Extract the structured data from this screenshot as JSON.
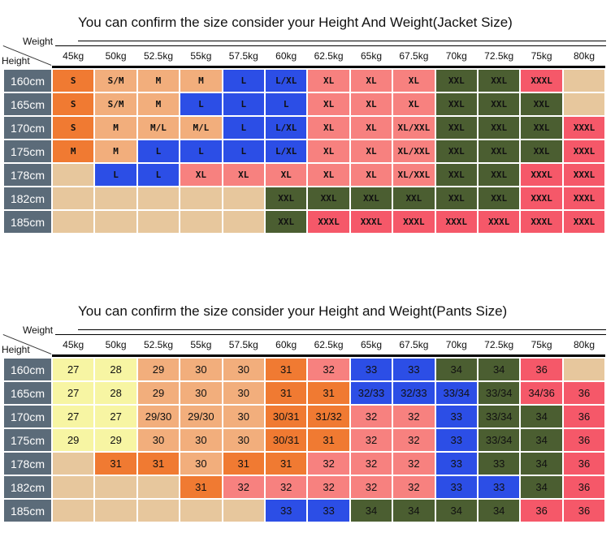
{
  "jacket": {
    "title": "You can confirm the size consider  your Height And Weight(Jacket Size)",
    "weight_label": "Weight",
    "height_label": "Height",
    "weights": [
      "45kg",
      "50kg",
      "52.5kg",
      "55kg",
      "57.5kg",
      "60kg",
      "62.5kg",
      "65kg",
      "67.5kg",
      "70kg",
      "72.5kg",
      "75kg",
      "80kg"
    ],
    "rows": [
      {
        "height": "160cm",
        "cells": [
          "S",
          "S/M",
          "M",
          "M",
          "L",
          "L/XL",
          "XL",
          "XL",
          "XL",
          "XXL",
          "XXL",
          "XXXL",
          null
        ],
        "colors": [
          "#f07a32",
          "#f2ae7c",
          "#f2ae7c",
          "#f2ae7c",
          "#2c4ee6",
          "#2c4ee6",
          "#f7817f",
          "#f7817f",
          "#f7817f",
          "#4b5e31",
          "#4b5e31",
          "#f55869",
          "#e7c79d"
        ]
      },
      {
        "height": "165cm",
        "cells": [
          "S",
          "S/M",
          "M",
          "L",
          "L",
          "L",
          "XL",
          "XL",
          "XL",
          "XXL",
          "XXL",
          "XXL",
          null
        ],
        "colors": [
          "#f07a32",
          "#f2ae7c",
          "#f2ae7c",
          "#2c4ee6",
          "#2c4ee6",
          "#2c4ee6",
          "#f7817f",
          "#f7817f",
          "#f7817f",
          "#4b5e31",
          "#4b5e31",
          "#4b5e31",
          "#e7c79d"
        ]
      },
      {
        "height": "170cm",
        "cells": [
          "S",
          "M",
          "M/L",
          "M/L",
          "L",
          "L/XL",
          "XL",
          "XL",
          "XL/XXL",
          "XXL",
          "XXL",
          "XXL",
          "XXXL"
        ],
        "colors": [
          "#f07a32",
          "#f2ae7c",
          "#f2ae7c",
          "#f2ae7c",
          "#2c4ee6",
          "#2c4ee6",
          "#f7817f",
          "#f7817f",
          "#f7817f",
          "#4b5e31",
          "#4b5e31",
          "#4b5e31",
          "#f55869"
        ]
      },
      {
        "height": "175cm",
        "cells": [
          "M",
          "M",
          "L",
          "L",
          "L",
          "L/XL",
          "XL",
          "XL",
          "XL/XXL",
          "XXL",
          "XXL",
          "XXL",
          "XXXL"
        ],
        "colors": [
          "#f07a32",
          "#f2ae7c",
          "#2c4ee6",
          "#2c4ee6",
          "#2c4ee6",
          "#2c4ee6",
          "#f7817f",
          "#f7817f",
          "#f7817f",
          "#4b5e31",
          "#4b5e31",
          "#4b5e31",
          "#f55869"
        ]
      },
      {
        "height": "178cm",
        "cells": [
          null,
          "L",
          "L",
          "XL",
          "XL",
          "XL",
          "XL",
          "XL",
          "XL/XXL",
          "XXL",
          "XXL",
          "XXXL",
          "XXXL"
        ],
        "colors": [
          "#e7c79d",
          "#2c4ee6",
          "#2c4ee6",
          "#f7817f",
          "#f7817f",
          "#f7817f",
          "#f7817f",
          "#f7817f",
          "#f7817f",
          "#4b5e31",
          "#4b5e31",
          "#f55869",
          "#f55869"
        ]
      },
      {
        "height": "182cm",
        "cells": [
          null,
          null,
          null,
          null,
          null,
          "XXL",
          "XXL",
          "XXL",
          "XXL",
          "XXL",
          "XXL",
          "XXXL",
          "XXXL"
        ],
        "colors": [
          "#e7c79d",
          "#e7c79d",
          "#e7c79d",
          "#e7c79d",
          "#e7c79d",
          "#4b5e31",
          "#4b5e31",
          "#4b5e31",
          "#4b5e31",
          "#4b5e31",
          "#4b5e31",
          "#f55869",
          "#f55869"
        ]
      },
      {
        "height": "185cm",
        "cells": [
          null,
          null,
          null,
          null,
          null,
          "XXL",
          "XXXL",
          "XXXL",
          "XXXL",
          "XXXL",
          "XXXL",
          "XXXL",
          "XXXL"
        ],
        "colors": [
          "#e7c79d",
          "#e7c79d",
          "#e7c79d",
          "#e7c79d",
          "#e7c79d",
          "#4b5e31",
          "#f55869",
          "#f55869",
          "#f55869",
          "#f55869",
          "#f55869",
          "#f55869",
          "#f55869"
        ]
      }
    ]
  },
  "pants": {
    "title": "You can confirm the size consider your Height and Weight(Pants Size)",
    "weight_label": "Weight",
    "height_label": "Height",
    "weights": [
      "45kg",
      "50kg",
      "52.5kg",
      "55kg",
      "57.5kg",
      "60kg",
      "62.5kg",
      "65kg",
      "67.5kg",
      "70kg",
      "72.5kg",
      "75kg",
      "80kg"
    ],
    "rows": [
      {
        "height": "160cm",
        "cells": [
          "27",
          "28",
          "29",
          "30",
          "30",
          "31",
          "32",
          "33",
          "33",
          "34",
          "34",
          "36",
          null
        ],
        "colors": [
          "#f7f5a3",
          "#f7f5a3",
          "#f2ae7c",
          "#f2ae7c",
          "#f2ae7c",
          "#f07a32",
          "#f7817f",
          "#2c4ee6",
          "#2c4ee6",
          "#4b5e31",
          "#4b5e31",
          "#f55869",
          "#e7c79d"
        ]
      },
      {
        "height": "165cm",
        "cells": [
          "27",
          "28",
          "29",
          "30",
          "30",
          "31",
          "31",
          "32/33",
          "32/33",
          "33/34",
          "33/34",
          "34/36",
          "36"
        ],
        "colors": [
          "#f7f5a3",
          "#f7f5a3",
          "#f2ae7c",
          "#f2ae7c",
          "#f2ae7c",
          "#f07a32",
          "#f07a32",
          "#2c4ee6",
          "#2c4ee6",
          "#2c4ee6",
          "#4b5e31",
          "#f55869",
          "#f55869"
        ]
      },
      {
        "height": "170cm",
        "cells": [
          "27",
          "27",
          "29/30",
          "29/30",
          "30",
          "30/31",
          "31/32",
          "32",
          "32",
          "33",
          "33/34",
          "34",
          "36"
        ],
        "colors": [
          "#f7f5a3",
          "#f7f5a3",
          "#f2ae7c",
          "#f2ae7c",
          "#f2ae7c",
          "#f07a32",
          "#f07a32",
          "#f7817f",
          "#f7817f",
          "#2c4ee6",
          "#4b5e31",
          "#4b5e31",
          "#f55869"
        ]
      },
      {
        "height": "175cm",
        "cells": [
          "29",
          "29",
          "30",
          "30",
          "30",
          "30/31",
          "31",
          "32",
          "32",
          "33",
          "33/34",
          "34",
          "36"
        ],
        "colors": [
          "#f7f5a3",
          "#f7f5a3",
          "#f2ae7c",
          "#f2ae7c",
          "#f2ae7c",
          "#f07a32",
          "#f07a32",
          "#f7817f",
          "#f7817f",
          "#2c4ee6",
          "#4b5e31",
          "#4b5e31",
          "#f55869"
        ]
      },
      {
        "height": "178cm",
        "cells": [
          null,
          "31",
          "31",
          "30",
          "31",
          "31",
          "32",
          "32",
          "32",
          "33",
          "33",
          "34",
          "36"
        ],
        "colors": [
          "#e7c79d",
          "#f07a32",
          "#f07a32",
          "#f2ae7c",
          "#f07a32",
          "#f07a32",
          "#f7817f",
          "#f7817f",
          "#f7817f",
          "#2c4ee6",
          "#4b5e31",
          "#4b5e31",
          "#f55869"
        ]
      },
      {
        "height": "182cm",
        "cells": [
          null,
          null,
          null,
          "31",
          "32",
          "32",
          "32",
          "32",
          "32",
          "33",
          "33",
          "34",
          "36"
        ],
        "colors": [
          "#e7c79d",
          "#e7c79d",
          "#e7c79d",
          "#f07a32",
          "#f7817f",
          "#f7817f",
          "#f7817f",
          "#f7817f",
          "#f7817f",
          "#2c4ee6",
          "#2c4ee6",
          "#4b5e31",
          "#f55869"
        ]
      },
      {
        "height": "185cm",
        "cells": [
          null,
          null,
          null,
          null,
          null,
          "33",
          "33",
          "34",
          "34",
          "34",
          "34",
          "36",
          "36"
        ],
        "colors": [
          "#e7c79d",
          "#e7c79d",
          "#e7c79d",
          "#e7c79d",
          "#e7c79d",
          "#2c4ee6",
          "#2c4ee6",
          "#4b5e31",
          "#4b5e31",
          "#4b5e31",
          "#4b5e31",
          "#f55869",
          "#f55869"
        ]
      }
    ]
  }
}
